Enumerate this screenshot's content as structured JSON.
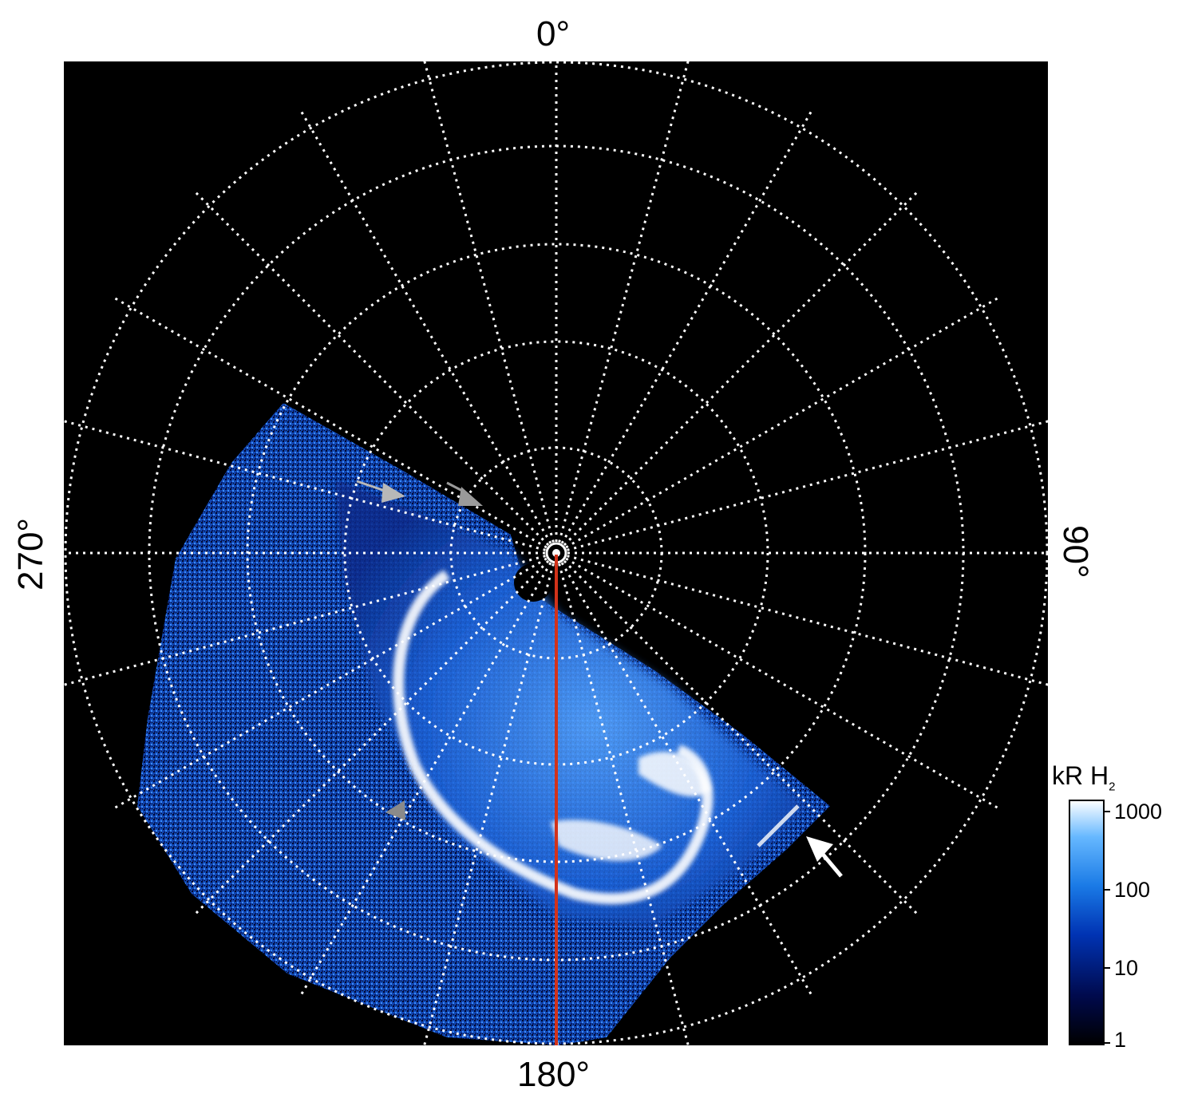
{
  "polar_plot": {
    "azimuth_labels": {
      "top": "0°",
      "right": "90°",
      "bottom": "180°",
      "left": "270°"
    },
    "background_color": "#000000",
    "grid_color": "#ffffff",
    "meridian_line_color": "#d2321a",
    "arrows": [
      {
        "name": "upper-left-arrow",
        "color": "#b8b8b8"
      },
      {
        "name": "near-pole-arrow",
        "color": "#9a9a9a"
      },
      {
        "name": "lower-left-triangle-marker",
        "color": "#8a8a8a"
      },
      {
        "name": "lower-right-arrow",
        "color": "#ffffff"
      }
    ]
  },
  "colorbar": {
    "title_main": "kR H",
    "title_sub": "2",
    "tick_labels": [
      "1000",
      "100",
      "10",
      "1"
    ],
    "colors": [
      "#000000",
      "#000a4d",
      "#0033b3",
      "#1a7ae6",
      "#66b8ff",
      "#ffffff"
    ]
  }
}
